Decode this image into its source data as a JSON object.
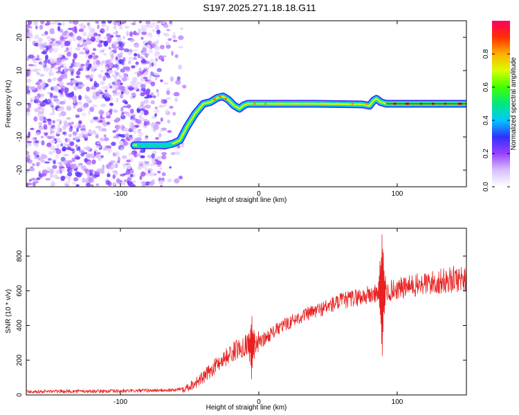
{
  "title": "S197.2025.271.18.18.G11",
  "chart_data": [
    {
      "type": "heatmap",
      "xlabel": "Height of straight line (km)",
      "ylabel": "Frequency (Hz)",
      "xlim": [
        -168,
        150
      ],
      "ylim": [
        -25,
        25
      ],
      "xticks": [
        -100,
        0,
        100
      ],
      "yticks": [
        -20,
        -10,
        0,
        10,
        20
      ],
      "noise_region_x": [
        -168,
        -56
      ],
      "ridge": [
        [
          -90,
          -12.5
        ],
        [
          -75,
          -12.5
        ],
        [
          -67,
          -12.5
        ],
        [
          -62,
          -12.0
        ],
        [
          -57,
          -11.0
        ],
        [
          -52,
          -7.0
        ],
        [
          -46,
          -3.0
        ],
        [
          -40,
          0.0
        ],
        [
          -35,
          0.5
        ],
        [
          -30,
          1.8
        ],
        [
          -26,
          2.2
        ],
        [
          -22,
          1.2
        ],
        [
          -18,
          -0.5
        ],
        [
          -14,
          -1.5
        ],
        [
          -11,
          -0.5
        ],
        [
          -8,
          0.0
        ],
        [
          0,
          0.0
        ],
        [
          40,
          0.0
        ],
        [
          75,
          -0.2
        ],
        [
          80,
          -0.6
        ],
        [
          83,
          1.0
        ],
        [
          85,
          1.5
        ],
        [
          88,
          0.5
        ],
        [
          92,
          0.0
        ],
        [
          150,
          0.0
        ]
      ]
    },
    {
      "type": "colorbar",
      "label": "Normalized spectral amplitude",
      "range": [
        0,
        1
      ],
      "ticks": [
        0.0,
        0.2,
        0.4,
        0.6,
        0.8
      ],
      "colors": [
        "#ffffff",
        "#d8c0ff",
        "#9a40ff",
        "#3030ff",
        "#00c8ff",
        "#00e880",
        "#40ff00",
        "#d8ff00",
        "#ffb000",
        "#ff3000",
        "#ff0060"
      ]
    },
    {
      "type": "line",
      "xlabel": "Height of straight line (km)",
      "ylabel": "SNR (10 * v/v)",
      "xlim": [
        -168,
        150
      ],
      "ylim": [
        0,
        960
      ],
      "xticks": [
        -100,
        0,
        100
      ],
      "yticks": [
        0,
        200,
        400,
        600,
        800
      ],
      "color": "#e82020",
      "trend": [
        [
          -168,
          20
        ],
        [
          -100,
          22
        ],
        [
          -60,
          28
        ],
        [
          -50,
          50
        ],
        [
          -40,
          100
        ],
        [
          -30,
          180
        ],
        [
          -20,
          240
        ],
        [
          -10,
          290
        ],
        [
          -5,
          300
        ],
        [
          0,
          300
        ],
        [
          10,
          360
        ],
        [
          20,
          410
        ],
        [
          30,
          450
        ],
        [
          40,
          480
        ],
        [
          50,
          510
        ],
        [
          60,
          540
        ],
        [
          70,
          560
        ],
        [
          80,
          575
        ],
        [
          90,
          590
        ],
        [
          100,
          610
        ],
        [
          110,
          625
        ],
        [
          120,
          640
        ],
        [
          130,
          650
        ],
        [
          140,
          665
        ],
        [
          150,
          675
        ]
      ],
      "spikes": [
        {
          "x": -5,
          "peak": 465,
          "trough": 60
        },
        {
          "x": 89,
          "peak": 950,
          "trough": 185
        }
      ]
    }
  ]
}
